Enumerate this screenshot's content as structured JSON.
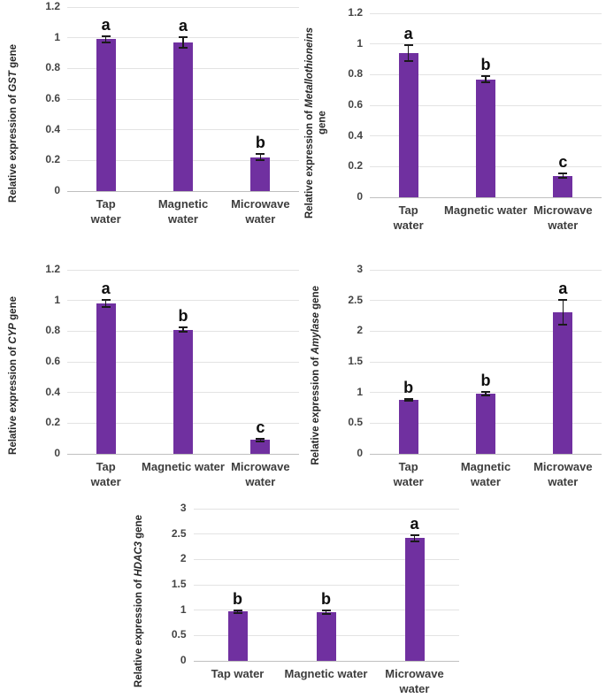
{
  "figure": {
    "bar_color": "#7030A0",
    "gridline_color": "#e3e3e3",
    "axis_color": "#bfbfbf",
    "error_bar_color": "#1a1a1a",
    "tick_text_color": "#444444",
    "category_text_color": "#3d3d3d",
    "letter_color": "#0d0d0d",
    "background": "#ffffff"
  },
  "chart_data": [
    {
      "type": "bar",
      "id": "gst",
      "ylabel_prefix": "Relative expression of ",
      "ylabel_gene": "GST",
      "ylabel_suffix": " gene",
      "categories": [
        "Tap\nwater",
        "Magnetic\nwater",
        "Microwave\nwater"
      ],
      "values": [
        0.99,
        0.97,
        0.22
      ],
      "errors": [
        0.02,
        0.035,
        0.02
      ],
      "letters": [
        "a",
        "a",
        "b"
      ],
      "ylim": [
        0,
        1.2
      ],
      "ytick_values": [
        0,
        0.2,
        0.4,
        0.6,
        0.8,
        1,
        1.2
      ],
      "ytick_labels": [
        "0",
        "0.2",
        "0.4",
        "0.6",
        "0.8",
        "1",
        "1.2"
      ],
      "grid": true,
      "legend": "none"
    },
    {
      "type": "bar",
      "id": "metallothioneins",
      "ylabel_prefix": "Relative expression of ",
      "ylabel_gene": "Metallothioneins",
      "ylabel_suffix": "\ngene",
      "categories": [
        "Tap\nwater",
        "Magnetic water",
        "Microwave\nwater"
      ],
      "values": [
        0.94,
        0.77,
        0.14
      ],
      "errors": [
        0.05,
        0.02,
        0.015
      ],
      "letters": [
        "a",
        "b",
        "c"
      ],
      "ylim": [
        0,
        1.2
      ],
      "ytick_values": [
        0,
        0.2,
        0.4,
        0.6,
        0.8,
        1,
        1.2
      ],
      "ytick_labels": [
        "0",
        "0.2",
        "0.4",
        "0.6",
        "0.8",
        "1",
        "1.2"
      ],
      "grid": true,
      "legend": "none"
    },
    {
      "type": "bar",
      "id": "cyp",
      "ylabel_prefix": "Relative expression of ",
      "ylabel_gene": "CYP",
      "ylabel_suffix": " gene",
      "categories": [
        "Tap\nwater",
        "Magnetic water",
        "Microwave\nwater"
      ],
      "values": [
        0.98,
        0.81,
        0.09
      ],
      "errors": [
        0.025,
        0.015,
        0.01
      ],
      "letters": [
        "a",
        "b",
        "c"
      ],
      "ylim": [
        0,
        1.2
      ],
      "ytick_values": [
        0,
        0.2,
        0.4,
        0.6,
        0.8,
        1,
        1.2
      ],
      "ytick_labels": [
        "0",
        "0.2",
        "0.4",
        "0.6",
        "0.8",
        "1",
        "1.2"
      ],
      "grid": true,
      "legend": "none"
    },
    {
      "type": "bar",
      "id": "amylase",
      "ylabel_prefix": "Relative expression of ",
      "ylabel_gene": "Amylase",
      "ylabel_suffix": " gene",
      "categories": [
        "Tap\nwater",
        "Magnetic\nwater",
        "Microwave\nwater"
      ],
      "values": [
        0.88,
        0.98,
        2.31
      ],
      "errors": [
        0.02,
        0.03,
        0.2
      ],
      "letters": [
        "b",
        "b",
        "a"
      ],
      "ylim": [
        0,
        3
      ],
      "ytick_values": [
        0,
        0.5,
        1,
        1.5,
        2,
        2.5,
        3
      ],
      "ytick_labels": [
        "0",
        "0.5",
        "1",
        "1.5",
        "2",
        "2.5",
        "3"
      ],
      "grid": true,
      "legend": "none"
    },
    {
      "type": "bar",
      "id": "hdac3",
      "ylabel_prefix": "Relative expression of ",
      "ylabel_gene": "HDAC3",
      "ylabel_suffix": " gene",
      "categories": [
        "Tap water",
        "Magnetic water",
        "Microwave\nwater"
      ],
      "values": [
        0.97,
        0.96,
        2.42
      ],
      "errors": [
        0.02,
        0.03,
        0.06
      ],
      "letters": [
        "b",
        "b",
        "a"
      ],
      "ylim": [
        0,
        3
      ],
      "ytick_values": [
        0,
        0.5,
        1,
        1.5,
        2,
        2.5,
        3
      ],
      "ytick_labels": [
        "0",
        "0.5",
        "1",
        "1.5",
        "2",
        "2.5",
        "3"
      ],
      "grid": true,
      "legend": "none"
    }
  ]
}
